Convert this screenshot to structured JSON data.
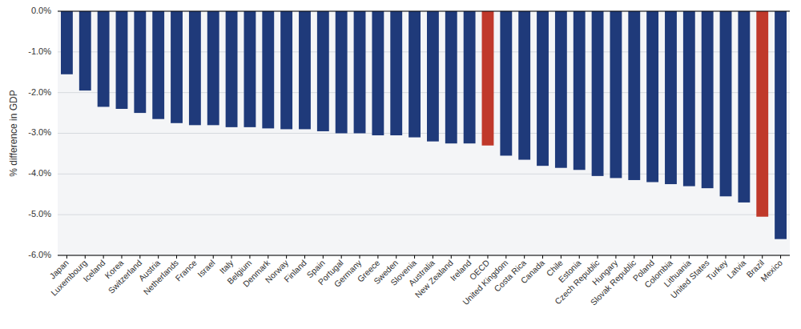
{
  "chart_data": {
    "type": "bar",
    "categories": [
      "Japan",
      "Luxembourg",
      "Iceland",
      "Korea",
      "Switzerland",
      "Austria",
      "Netherlands",
      "France",
      "Israel",
      "Italy",
      "Belgium",
      "Denmark",
      "Norway",
      "Finland",
      "Spain",
      "Portugal",
      "Germany",
      "Greece",
      "Sweden",
      "Slovenia",
      "Australia",
      "New Zealand",
      "Ireland",
      "OECD",
      "United Kingdom",
      "Costa Rica",
      "Canada",
      "Chile",
      "Estonia",
      "Czech Republic",
      "Hungary",
      "Slovak Republic",
      "Poland",
      "Colombia",
      "Lithuania",
      "United States",
      "Turkey",
      "Latvia",
      "Brazil",
      "Mexico"
    ],
    "values": [
      -1.55,
      -1.95,
      -2.35,
      -2.4,
      -2.5,
      -2.65,
      -2.75,
      -2.8,
      -2.8,
      -2.85,
      -2.85,
      -2.88,
      -2.9,
      -2.9,
      -2.95,
      -3.0,
      -3.0,
      -3.05,
      -3.05,
      -3.1,
      -3.2,
      -3.25,
      -3.25,
      -3.3,
      -3.55,
      -3.65,
      -3.8,
      -3.85,
      -3.9,
      -4.05,
      -4.1,
      -4.15,
      -4.2,
      -4.25,
      -4.3,
      -4.35,
      -4.55,
      -4.7,
      -5.05,
      -5.6
    ],
    "colors": [
      "#1f3a7a",
      "#1f3a7a",
      "#1f3a7a",
      "#1f3a7a",
      "#1f3a7a",
      "#1f3a7a",
      "#1f3a7a",
      "#1f3a7a",
      "#1f3a7a",
      "#1f3a7a",
      "#1f3a7a",
      "#1f3a7a",
      "#1f3a7a",
      "#1f3a7a",
      "#1f3a7a",
      "#1f3a7a",
      "#1f3a7a",
      "#1f3a7a",
      "#1f3a7a",
      "#1f3a7a",
      "#1f3a7a",
      "#1f3a7a",
      "#1f3a7a",
      "#c0392b",
      "#1f3a7a",
      "#1f3a7a",
      "#1f3a7a",
      "#1f3a7a",
      "#1f3a7a",
      "#1f3a7a",
      "#1f3a7a",
      "#1f3a7a",
      "#1f3a7a",
      "#1f3a7a",
      "#1f3a7a",
      "#1f3a7a",
      "#1f3a7a",
      "#1f3a7a",
      "#c0392b",
      "#1f3a7a"
    ],
    "ylabel": "% difference in GDP",
    "ylim": [
      -6.0,
      0.0
    ],
    "yticks": [
      {
        "value": 0.0,
        "label": "0.0%"
      },
      {
        "value": -1.0,
        "label": "-1.0%"
      },
      {
        "value": -2.0,
        "label": "-2.0%"
      },
      {
        "value": -3.0,
        "label": "-3.0%"
      },
      {
        "value": -4.0,
        "label": "-4.0%"
      },
      {
        "value": -5.0,
        "label": "-5.0%"
      },
      {
        "value": -6.0,
        "label": "-6.0%"
      }
    ],
    "grid": true
  }
}
